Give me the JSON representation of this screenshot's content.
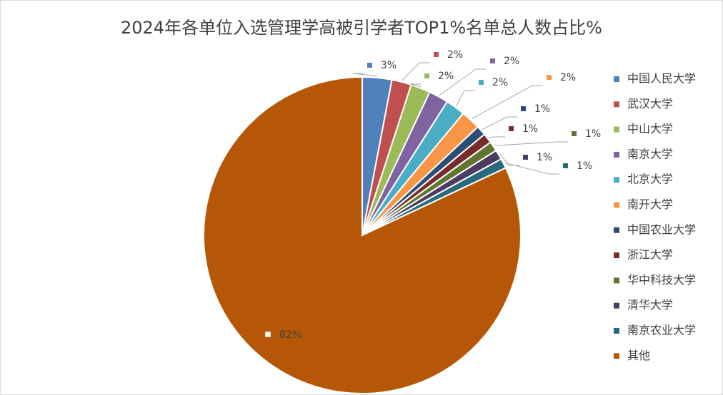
{
  "chart_data": {
    "type": "pie",
    "title": "2024年各单位入选管理学高被引学者TOP1%名单总人数占比%",
    "categories": [
      "中国人民大学",
      "武汉大学",
      "中山大学",
      "南京大学",
      "北京大学",
      "南开大学",
      "中国农业大学",
      "浙江大学",
      "华中科技大学",
      "清华大学",
      "南京农业大学",
      "其他"
    ],
    "values": [
      3,
      2,
      2,
      2,
      2,
      2,
      1,
      1,
      1,
      1,
      1,
      82
    ],
    "value_labels": [
      "3%",
      "2%",
      "2%",
      "2%",
      "2%",
      "2%",
      "1%",
      "1%",
      "1%",
      "1%",
      "1%",
      "82%"
    ],
    "colors": [
      "#4f81bd",
      "#c0504d",
      "#9bbb59",
      "#8064a2",
      "#4bacc6",
      "#f79646",
      "#2c4d75",
      "#772c2a",
      "#5f7530",
      "#4d3b62",
      "#276a7c",
      "#b65708"
    ],
    "legend": "right"
  }
}
